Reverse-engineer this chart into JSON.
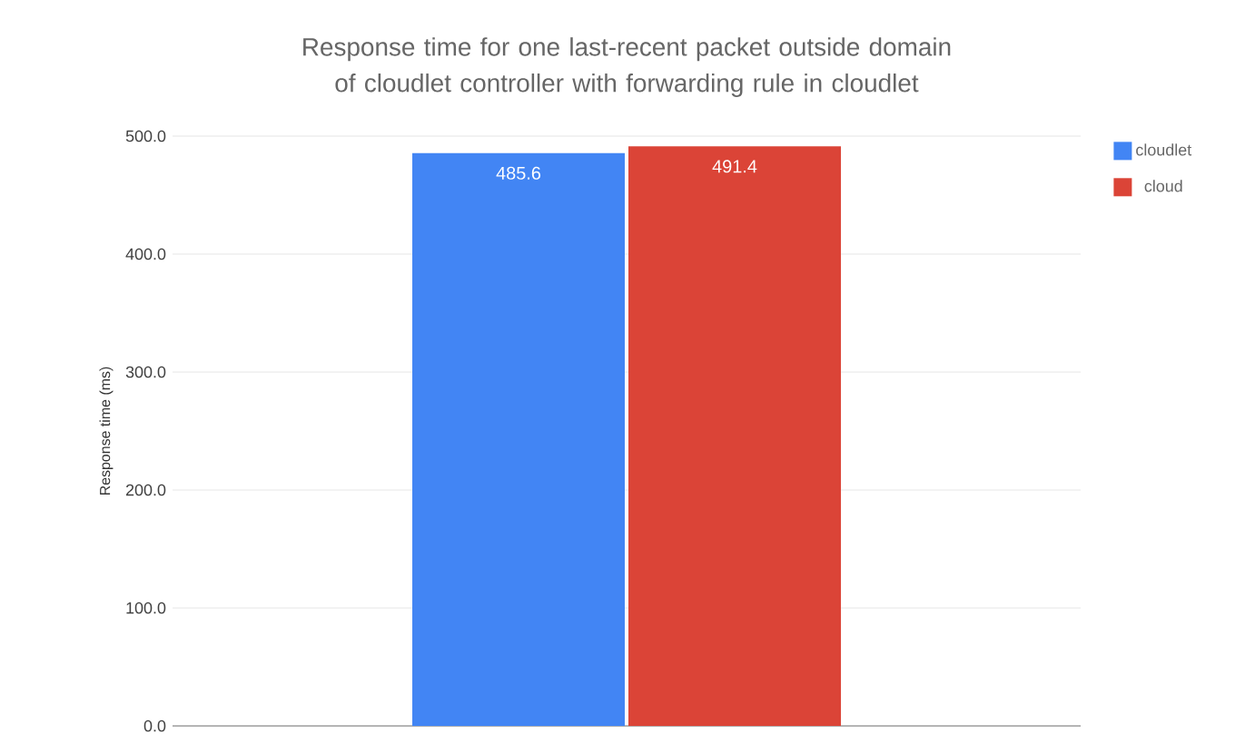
{
  "chart_data": {
    "type": "bar",
    "title": "Response time for one last-recent packet outside domain of cloudlet controller with forwarding rule in cloudlet",
    "ylabel": "Response time (ms)",
    "categories": [
      null
    ],
    "series": [
      {
        "name": "cloudlet",
        "color": "#4285f4",
        "values": [
          485.6
        ]
      },
      {
        "name": "cloud",
        "color": "#db4437",
        "values": [
          491.4
        ]
      }
    ],
    "ylim": [
      0,
      500
    ],
    "yticks": [
      {
        "value": 0,
        "label": "0.0"
      },
      {
        "value": 100,
        "label": "100.0"
      },
      {
        "value": 200,
        "label": "200.0"
      },
      {
        "value": 300,
        "label": "300.0"
      },
      {
        "value": 400,
        "label": "400.0"
      },
      {
        "value": 500,
        "label": "500.0"
      }
    ],
    "grid": "y",
    "legend": "top right",
    "data_labels": true
  }
}
